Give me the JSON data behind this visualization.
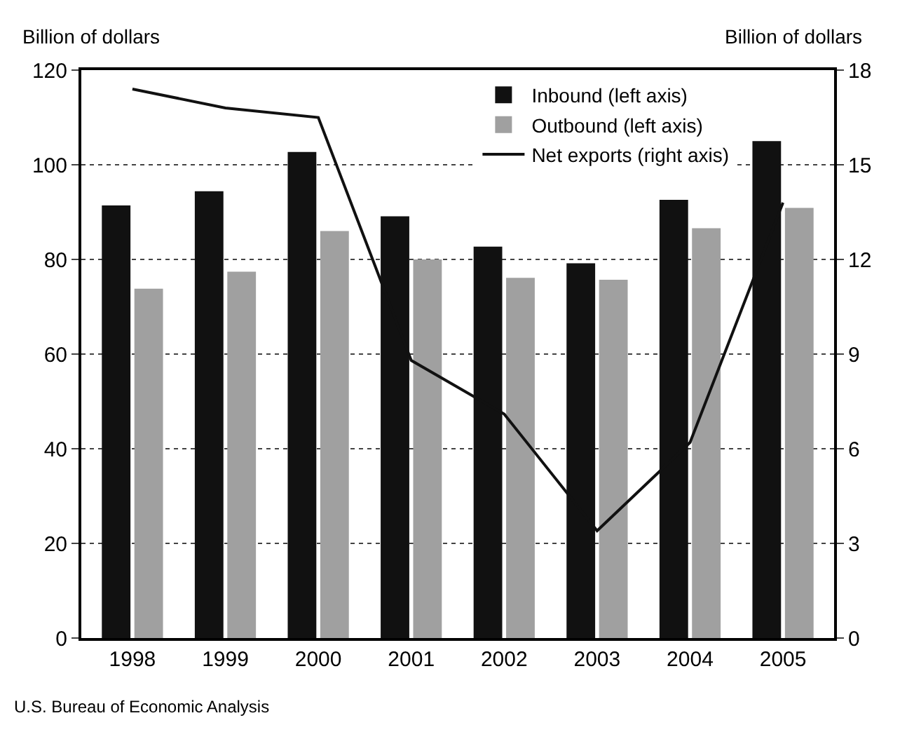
{
  "chart_data": {
    "type": "bar",
    "ylabel": "Billion of dollars",
    "y2label": "Billion of dollars",
    "categories": [
      "1998",
      "1999",
      "2000",
      "2001",
      "2002",
      "2003",
      "2004",
      "2005"
    ],
    "series": [
      {
        "name": "Inbound (left axis)",
        "color": "#111111",
        "values": [
          91.4,
          94.4,
          102.7,
          89.1,
          82.7,
          79.2,
          92.6,
          105
        ]
      },
      {
        "name": "Outbound (left axis)",
        "color": "#a0a0a0",
        "values": [
          73.8,
          77.4,
          86,
          80,
          76.1,
          75.7,
          86.6,
          90.9
        ]
      },
      {
        "name": "Net exports (right axis)",
        "type": "line",
        "axis": "y2",
        "color": "#111111",
        "marker": "none",
        "values": [
          17.4,
          16.8,
          16.5,
          8.8,
          7.1,
          3.4,
          6.2,
          13.8
        ]
      }
    ],
    "ylim": [
      0,
      120
    ],
    "yticks": [
      0,
      20,
      40,
      60,
      80,
      100,
      120
    ],
    "y2lim": [
      0,
      18
    ],
    "y2ticks": [
      0,
      3,
      6,
      9,
      12,
      15,
      18
    ],
    "grid": "y",
    "legend": "top right",
    "annotations": [
      "U.S. Bureau of Economic Analysis"
    ]
  }
}
